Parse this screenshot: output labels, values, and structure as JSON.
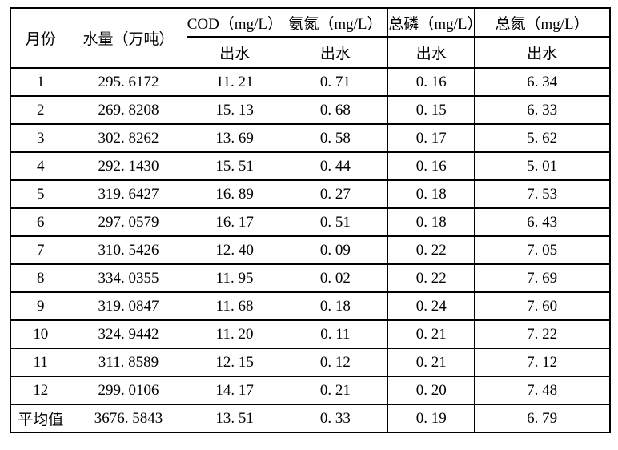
{
  "table": {
    "title": "monthly-effluent-water-quality-table",
    "columns": [
      {
        "label": "月份"
      },
      {
        "label": "水量（万吨）"
      },
      {
        "label": "COD（mg/L）",
        "sub": "出水"
      },
      {
        "label": "氨氮（mg/L）",
        "sub": "出水"
      },
      {
        "label": "总磷（mg/L）",
        "sub": "出水"
      },
      {
        "label": "总氮（mg/L）",
        "sub": "出水"
      }
    ],
    "rows": [
      [
        "1",
        "295. 6172",
        "11. 21",
        "0. 71",
        "0. 16",
        "6. 34"
      ],
      [
        "2",
        "269. 8208",
        "15. 13",
        "0. 68",
        "0. 15",
        "6. 33"
      ],
      [
        "3",
        "302. 8262",
        "13. 69",
        "0. 58",
        "0. 17",
        "5. 62"
      ],
      [
        "4",
        "292. 1430",
        "15. 51",
        "0. 44",
        "0. 16",
        "5. 01"
      ],
      [
        "5",
        "319. 6427",
        "16. 89",
        "0. 27",
        "0. 18",
        "7. 53"
      ],
      [
        "6",
        "297. 0579",
        "16. 17",
        "0. 51",
        "0. 18",
        "6. 43"
      ],
      [
        "7",
        "310. 5426",
        "12. 40",
        "0. 09",
        "0. 22",
        "7. 05"
      ],
      [
        "8",
        "334. 0355",
        "11. 95",
        "0. 02",
        "0. 22",
        "7. 69"
      ],
      [
        "9",
        "319. 0847",
        "11. 68",
        "0. 18",
        "0. 24",
        "7. 60"
      ],
      [
        "10",
        "324. 9442",
        "11. 20",
        "0. 11",
        "0. 21",
        "7. 22"
      ],
      [
        "11",
        "311. 8589",
        "12. 15",
        "0. 12",
        "0. 21",
        "7. 12"
      ],
      [
        "12",
        "299. 0106",
        "14. 17",
        "0. 21",
        "0. 20",
        "7. 48"
      ],
      [
        "平均值",
        "3676. 5843",
        "13. 51",
        "0. 33",
        "0. 19",
        "6. 79"
      ]
    ],
    "colors": {
      "border": "#000000",
      "text": "#000000",
      "background": "#ffffff"
    }
  }
}
